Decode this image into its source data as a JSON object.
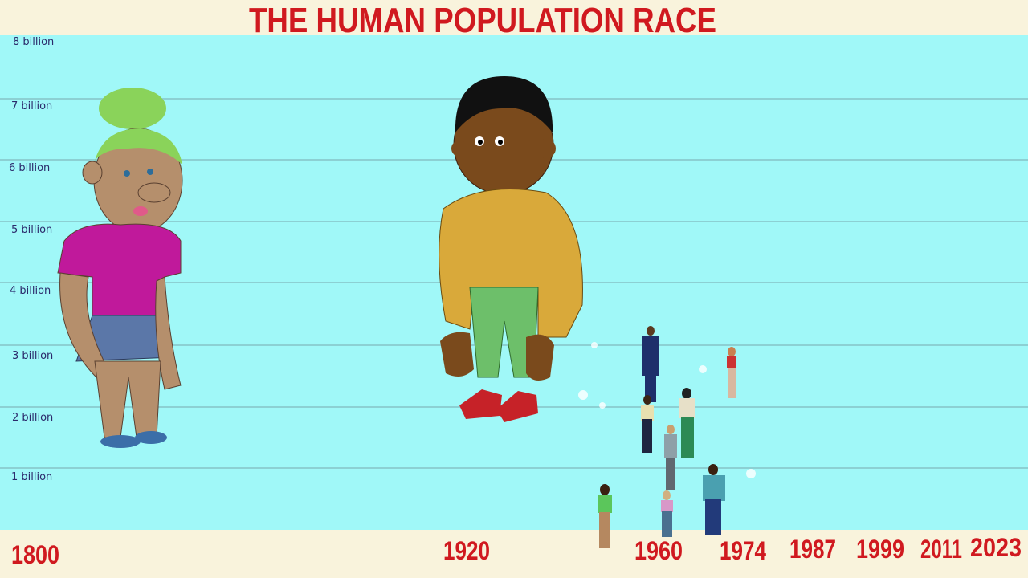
{
  "header": {
    "title": "THE HUMAN  POPULATION RACE"
  },
  "y_labels": [
    "8 billion",
    "7 billion",
    "6 billion",
    "5 billion",
    "4 billion",
    "3 billion",
    "2 billion",
    "1 billion"
  ],
  "x_labels": [
    "1800",
    "1920",
    "1960",
    "1974",
    "1987",
    "1999",
    "2011",
    "2023"
  ]
}
